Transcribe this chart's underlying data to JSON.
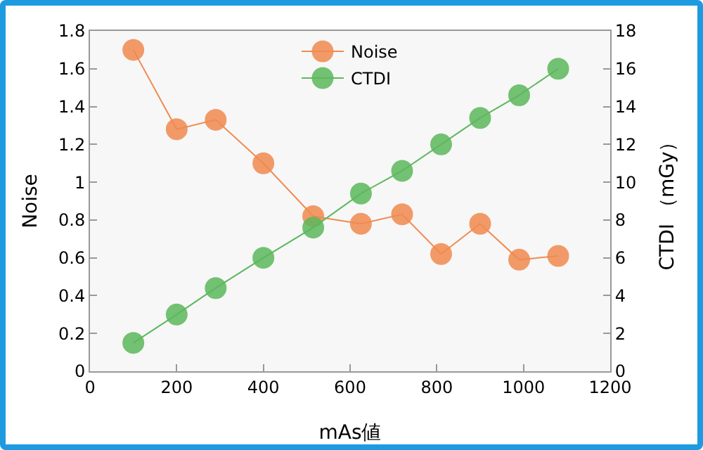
{
  "chart_data": {
    "type": "line",
    "xlabel": "mAs値",
    "ylabel": "Noise",
    "y2label": "CTDI （mGy）",
    "x": [
      100,
      200,
      290,
      400,
      515,
      625,
      720,
      810,
      900,
      990,
      1080
    ],
    "series": [
      {
        "name": "Noise",
        "color": "#f08a50",
        "values": [
          1.7,
          1.28,
          1.33,
          1.1,
          0.82,
          0.78,
          0.83,
          0.62,
          0.78,
          0.59,
          0.61
        ]
      },
      {
        "name": "CTDI",
        "color": "#5cb85c",
        "axis": "y2",
        "values": [
          1.5,
          3.0,
          4.4,
          6.0,
          7.6,
          9.4,
          10.6,
          12.0,
          13.4,
          14.6,
          16.0
        ]
      }
    ],
    "xlim": [
      0,
      1200
    ],
    "xticks": [
      0,
      200,
      400,
      600,
      800,
      1000,
      1200
    ],
    "ylim": [
      0,
      1.8
    ],
    "yticks": [
      0,
      0.2,
      0.4,
      0.6,
      0.8,
      1,
      1.2,
      1.4,
      1.6,
      1.8
    ],
    "y2lim": [
      0,
      18
    ],
    "y2ticks": [
      0,
      2,
      4,
      6,
      8,
      10,
      12,
      14,
      16,
      18
    ],
    "marker": "circle",
    "grid": false,
    "legend": "top"
  }
}
